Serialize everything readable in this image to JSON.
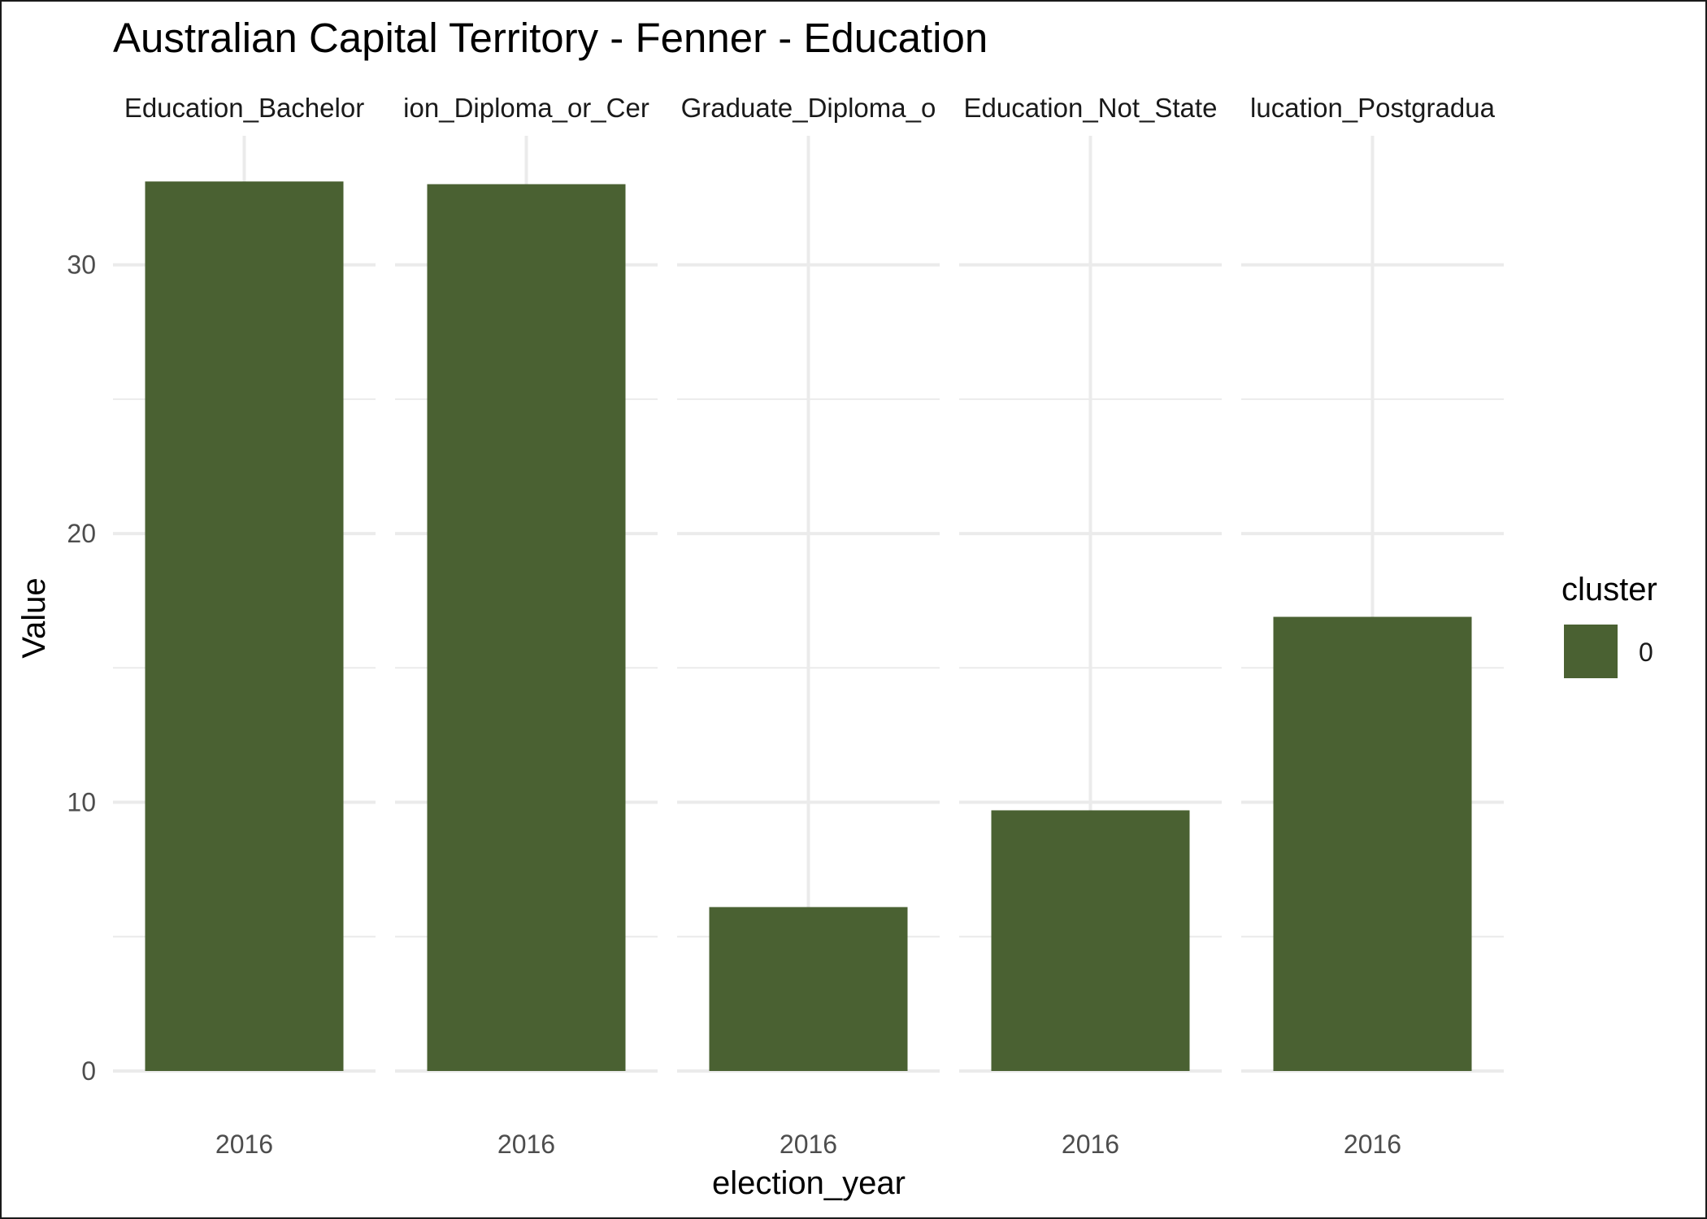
{
  "chart_data": {
    "type": "bar",
    "title": "Australian Capital Territory - Fenner - Education",
    "xlabel": "election_year",
    "ylabel": "Value",
    "facets": [
      {
        "label": "Education_Bachelor",
        "category": "2016",
        "value": 33.1
      },
      {
        "label": "ion_Diploma_or_Cer",
        "category": "2016",
        "value": 33.0
      },
      {
        "label": "Graduate_Diploma_o",
        "category": "2016",
        "value": 6.1
      },
      {
        "label": "Education_Not_State",
        "category": "2016",
        "value": 9.7
      },
      {
        "label": "lucation_Postgradua",
        "category": "2016",
        "value": 16.9
      }
    ],
    "ylim": [
      0,
      34.8
    ],
    "yticks": [
      0,
      10,
      20,
      30
    ],
    "grid": true,
    "legend": {
      "title": "cluster",
      "position": "right",
      "entries": [
        {
          "label": "0",
          "color": "#4a6132"
        }
      ]
    },
    "bar_color": "#4a6132"
  }
}
